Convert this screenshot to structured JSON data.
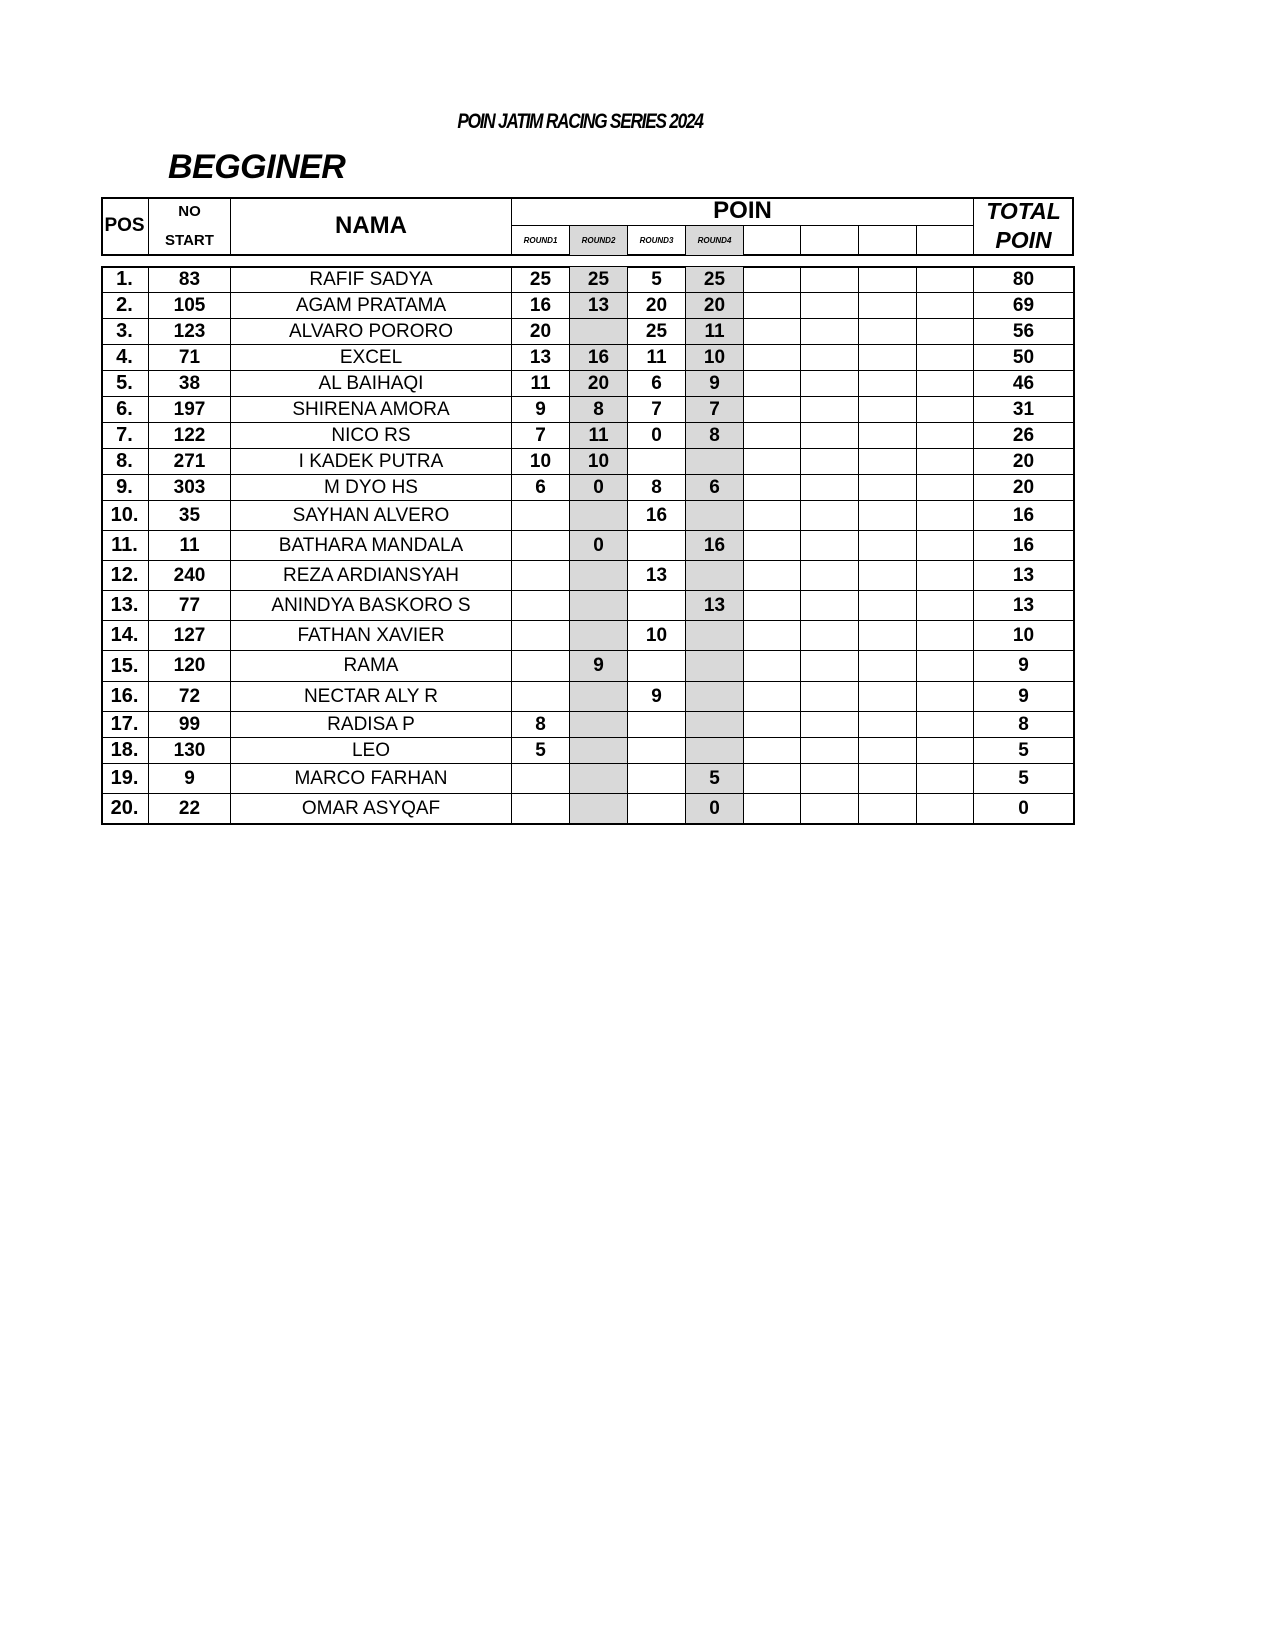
{
  "title": "POIN JATIM RACING SERIES 2024",
  "category": "BEGGINER",
  "headers": {
    "pos": "POS",
    "no": "NO",
    "start": "START",
    "nama": "NAMA",
    "poin": "POIN",
    "total1": "TOTAL",
    "total2": "POIN",
    "rounds": [
      "ROUND1",
      "ROUND2",
      "ROUND3",
      "ROUND4",
      "",
      "",
      "",
      ""
    ]
  },
  "colors": {
    "shaded_round_column": "#d9d9d9"
  },
  "rows": [
    {
      "pos": "1.",
      "no": "83",
      "nama": "RAFIF SADYA",
      "r": [
        "25",
        "25",
        "5",
        "25"
      ],
      "total": "80"
    },
    {
      "pos": "2.",
      "no": "105",
      "nama": "AGAM PRATAMA",
      "r": [
        "16",
        "13",
        "20",
        "20"
      ],
      "total": "69"
    },
    {
      "pos": "3.",
      "no": "123",
      "nama": "ALVARO PORORO",
      "r": [
        "20",
        "",
        "25",
        "11"
      ],
      "total": "56"
    },
    {
      "pos": "4.",
      "no": "71",
      "nama": "EXCEL",
      "r": [
        "13",
        "16",
        "11",
        "10"
      ],
      "total": "50"
    },
    {
      "pos": "5.",
      "no": "38",
      "nama": "AL BAIHAQI",
      "r": [
        "11",
        "20",
        "6",
        "9"
      ],
      "total": "46"
    },
    {
      "pos": "6.",
      "no": "197",
      "nama": "SHIRENA AMORA",
      "r": [
        "9",
        "8",
        "7",
        "7"
      ],
      "total": "31"
    },
    {
      "pos": "7.",
      "no": "122",
      "nama": "NICO RS",
      "r": [
        "7",
        "11",
        "0",
        "8"
      ],
      "total": "26"
    },
    {
      "pos": "8.",
      "no": "271",
      "nama": "I KADEK PUTRA",
      "r": [
        "10",
        "10",
        "",
        ""
      ],
      "total": "20"
    },
    {
      "pos": "9.",
      "no": "303",
      "nama": "M DYO HS",
      "r": [
        "6",
        "0",
        "8",
        "6"
      ],
      "total": "20"
    },
    {
      "pos": "10.",
      "no": "35",
      "nama": "SAYHAN ALVERO",
      "r": [
        "",
        "",
        "16",
        ""
      ],
      "total": "16"
    },
    {
      "pos": "11.",
      "no": "11",
      "nama": "BATHARA MANDALA",
      "r": [
        "",
        "0",
        "",
        "16"
      ],
      "total": "16"
    },
    {
      "pos": "12.",
      "no": "240",
      "nama": "REZA ARDIANSYAH",
      "r": [
        "",
        "",
        "13",
        ""
      ],
      "total": "13"
    },
    {
      "pos": "13.",
      "no": "77",
      "nama": "ANINDYA BASKORO S",
      "r": [
        "",
        "",
        "",
        "13"
      ],
      "total": "13"
    },
    {
      "pos": "14.",
      "no": "127",
      "nama": "FATHAN XAVIER",
      "r": [
        "",
        "",
        "10",
        ""
      ],
      "total": "10"
    },
    {
      "pos": "15.",
      "no": "120",
      "nama": "RAMA",
      "r": [
        "",
        "9",
        "",
        ""
      ],
      "total": "9"
    },
    {
      "pos": "16.",
      "no": "72",
      "nama": "NECTAR ALY R",
      "r": [
        "",
        "",
        "9",
        ""
      ],
      "total": "9"
    },
    {
      "pos": "17.",
      "no": "99",
      "nama": "RADISA P",
      "r": [
        "8",
        "",
        "",
        ""
      ],
      "total": "8"
    },
    {
      "pos": "18.",
      "no": "130",
      "nama": "LEO",
      "r": [
        "5",
        "",
        "",
        ""
      ],
      "total": "5"
    },
    {
      "pos": "19.",
      "no": "9",
      "nama": "MARCO FARHAN",
      "r": [
        "",
        "",
        "",
        "5"
      ],
      "total": "5"
    },
    {
      "pos": "20.",
      "no": "22",
      "nama": "OMAR ASYQAF",
      "r": [
        "",
        "",
        "",
        "0"
      ],
      "total": "0"
    }
  ]
}
